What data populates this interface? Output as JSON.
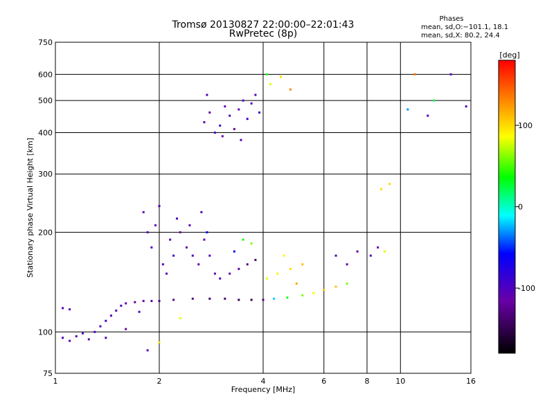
{
  "chart_data": {
    "type": "scatter",
    "title": "Tromsø 20130827 22:00:00–22:01:43",
    "subtitle": "RwPretec (8p)",
    "xlabel": "Frequency [MHz]",
    "ylabel": "Stationary phase Virtual Height [km]",
    "x_scale": "log",
    "y_scale": "log",
    "xlim": [
      1,
      16
    ],
    "ylim": [
      75,
      750
    ],
    "x_ticks": [
      1,
      2,
      4,
      6,
      8,
      10,
      16
    ],
    "y_ticks": [
      75,
      100,
      200,
      300,
      400,
      500,
      600,
      750
    ],
    "x_grid": [
      2,
      4,
      6,
      8,
      10
    ],
    "y_grid": [
      100,
      200,
      300,
      400,
      500,
      600
    ],
    "phases_box": {
      "title": "Phases",
      "line1": "mean, sd,O:−101.1, 18.1",
      "line2": "mean, sd,X:  80.2, 24.4"
    },
    "colorbar": {
      "label": "[deg]",
      "range": [
        -180,
        180
      ],
      "ticks": [
        -100,
        0,
        100
      ]
    },
    "series": [
      {
        "points": [
          [
            1.05,
            96,
            -100
          ],
          [
            1.1,
            94,
            -110
          ],
          [
            1.15,
            97,
            -105
          ],
          [
            1.2,
            99,
            -100
          ],
          [
            1.25,
            95,
            -110
          ],
          [
            1.3,
            100,
            -100
          ],
          [
            1.35,
            104,
            -100
          ],
          [
            1.4,
            108,
            -95
          ],
          [
            1.45,
            112,
            -100
          ],
          [
            1.5,
            116,
            -105
          ],
          [
            1.55,
            120,
            -100
          ],
          [
            1.6,
            122,
            -110
          ],
          [
            1.7,
            123,
            -120
          ],
          [
            1.8,
            124,
            -120
          ],
          [
            1.9,
            124,
            -125
          ],
          [
            2.0,
            124,
            -130
          ],
          [
            2.2,
            125,
            -130
          ],
          [
            2.5,
            126,
            -130
          ],
          [
            2.8,
            126,
            -140
          ],
          [
            3.1,
            126,
            -140
          ],
          [
            3.4,
            125,
            -150
          ],
          [
            3.7,
            125,
            -150
          ],
          [
            4.0,
            125,
            -130
          ],
          [
            4.3,
            126,
            -20
          ],
          [
            4.7,
            127,
            40
          ],
          [
            5.2,
            129,
            60
          ],
          [
            5.6,
            131,
            90
          ],
          [
            6.0,
            134,
            110
          ],
          [
            6.5,
            137,
            110
          ],
          [
            7.0,
            140,
            60
          ],
          [
            1.05,
            118,
            -100
          ],
          [
            1.1,
            117,
            -110
          ],
          [
            1.9,
            180,
            -100
          ],
          [
            1.95,
            210,
            -110
          ],
          [
            2.0,
            240,
            -100
          ],
          [
            2.05,
            160,
            -100
          ],
          [
            2.1,
            150,
            -105
          ],
          [
            2.15,
            190,
            -110
          ],
          [
            2.2,
            170,
            -90
          ],
          [
            1.85,
            200,
            -100
          ],
          [
            1.8,
            230,
            -110
          ],
          [
            2.25,
            220,
            -100
          ],
          [
            2.3,
            200,
            -120
          ],
          [
            2.4,
            180,
            -110
          ],
          [
            2.5,
            170,
            -100
          ],
          [
            2.6,
            160,
            -110
          ],
          [
            2.7,
            190,
            -120
          ],
          [
            2.8,
            170,
            -100
          ],
          [
            2.9,
            150,
            -110
          ],
          [
            2.45,
            210,
            -100
          ],
          [
            2.65,
            230,
            -100
          ],
          [
            2.75,
            200,
            -60
          ],
          [
            3.0,
            145,
            -100
          ],
          [
            3.2,
            150,
            -110
          ],
          [
            3.4,
            155,
            -120
          ],
          [
            3.6,
            160,
            -130
          ],
          [
            3.8,
            165,
            -140
          ],
          [
            3.3,
            175,
            -60
          ],
          [
            3.5,
            190,
            40
          ],
          [
            3.7,
            185,
            60
          ],
          [
            4.1,
            145,
            80
          ],
          [
            4.4,
            150,
            90
          ],
          [
            4.8,
            155,
            100
          ],
          [
            5.2,
            160,
            110
          ],
          [
            4.6,
            170,
            90
          ],
          [
            5.0,
            140,
            120
          ],
          [
            2.7,
            430,
            -110
          ],
          [
            2.8,
            460,
            -120
          ],
          [
            2.9,
            400,
            -100
          ],
          [
            3.0,
            420,
            -90
          ],
          [
            3.1,
            480,
            -110
          ],
          [
            3.2,
            450,
            -100
          ],
          [
            3.3,
            410,
            -120
          ],
          [
            3.4,
            470,
            -110
          ],
          [
            3.5,
            500,
            -100
          ],
          [
            3.6,
            440,
            -90
          ],
          [
            3.7,
            490,
            -110
          ],
          [
            3.8,
            520,
            -100
          ],
          [
            3.9,
            460,
            -90
          ],
          [
            2.75,
            520,
            -100
          ],
          [
            3.05,
            390,
            -110
          ],
          [
            3.45,
            380,
            -100
          ],
          [
            4.2,
            560,
            80
          ],
          [
            4.5,
            590,
            100
          ],
          [
            4.8,
            540,
            130
          ],
          [
            4.1,
            600,
            40
          ],
          [
            6.5,
            170,
            -100
          ],
          [
            7.0,
            160,
            -110
          ],
          [
            7.5,
            175,
            -120
          ],
          [
            8.2,
            170,
            -100
          ],
          [
            8.6,
            180,
            -110
          ],
          [
            9.0,
            175,
            80
          ],
          [
            8.8,
            270,
            100
          ],
          [
            9.3,
            280,
            100
          ],
          [
            10.5,
            470,
            -30
          ],
          [
            12.0,
            450,
            -100
          ],
          [
            14.0,
            600,
            -100
          ],
          [
            15.5,
            480,
            -100
          ],
          [
            11.0,
            600,
            140
          ],
          [
            12.5,
            500,
            20
          ],
          [
            1.4,
            96,
            -100
          ],
          [
            1.6,
            102,
            -120
          ],
          [
            1.85,
            88,
            -100
          ],
          [
            2.0,
            93,
            100
          ],
          [
            2.3,
            110,
            80
          ],
          [
            1.75,
            115,
            -100
          ]
        ]
      }
    ]
  }
}
